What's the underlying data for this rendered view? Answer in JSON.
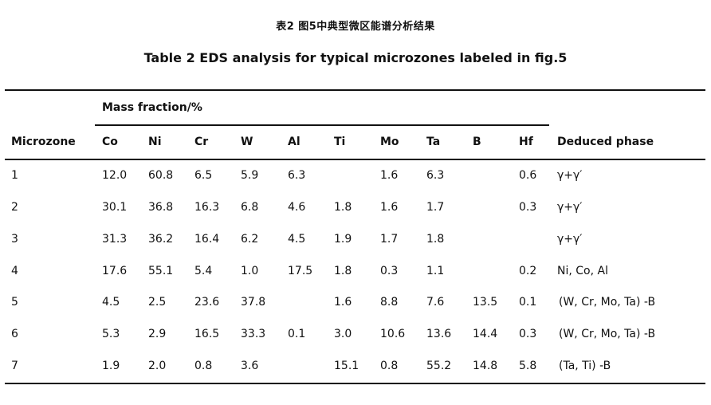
{
  "caption_cn": "表2 图5中典型微区能谱分析结果",
  "caption_en": "Table 2 EDS analysis for typical microzones labeled in fig.5",
  "table": {
    "group_header": "Mass fraction/%",
    "headers": [
      "Microzone",
      "Co",
      "Ni",
      "Cr",
      "W",
      "Al",
      "Ti",
      "Mo",
      "Ta",
      "B",
      "Hf",
      "Deduced phase"
    ],
    "rows": [
      [
        "1",
        "12.0",
        "60.8",
        "6.5",
        "5.9",
        "6.3",
        "",
        "1.6",
        "6.3",
        "",
        "0.6",
        "γ+γ′"
      ],
      [
        "2",
        "30.1",
        "36.8",
        "16.3",
        "6.8",
        "4.6",
        "1.8",
        "1.6",
        "1.7",
        "",
        "0.3",
        "γ+γ′"
      ],
      [
        "3",
        "31.3",
        "36.2",
        "16.4",
        "6.2",
        "4.5",
        "1.9",
        "1.7",
        "1.8",
        "",
        "",
        "γ+γ′"
      ],
      [
        "4",
        "17.6",
        "55.1",
        "5.4",
        "1.0",
        "17.5",
        "1.8",
        "0.3",
        "1.1",
        "",
        "0.2",
        "Ni, Co, Al"
      ],
      [
        "5",
        "4.5",
        "2.5",
        "23.6",
        "37.8",
        "",
        "1.6",
        "8.8",
        "7.6",
        "13.5",
        "0.1",
        " (W, Cr, Mo, Ta) -B"
      ],
      [
        "6",
        "5.3",
        "2.9",
        "16.5",
        "33.3",
        "0.1",
        "3.0",
        "10.6",
        "13.6",
        "14.4",
        "0.3",
        " (W, Cr, Mo, Ta) -B"
      ],
      [
        "7",
        "1.9",
        "2.0",
        "0.8",
        "3.6",
        "",
        "15.1",
        "0.8",
        "55.2",
        "14.8",
        "5.8",
        " (Ta, Ti) -B"
      ]
    ]
  }
}
